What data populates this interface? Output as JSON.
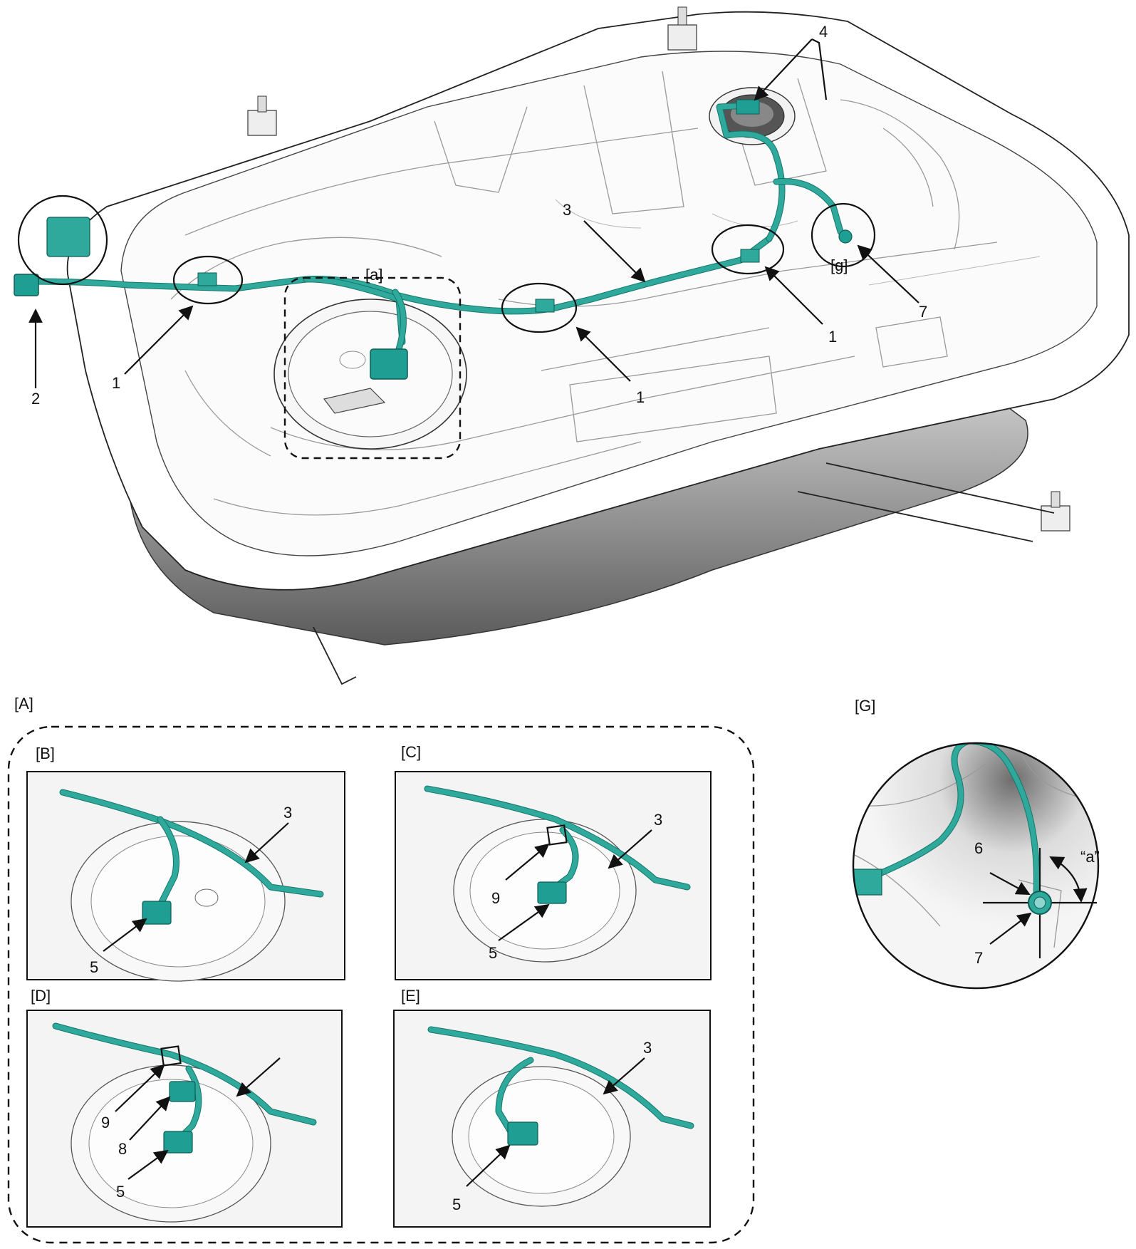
{
  "main_view": {
    "callouts": {
      "a": "[a]",
      "g": "[g]"
    },
    "numbers": {
      "n1_left": "1",
      "n1_mid": "1",
      "n1_right": "1",
      "n2": "2",
      "n3": "3",
      "n4": "4",
      "n7": "7"
    }
  },
  "detail_A": {
    "label": "[A]",
    "panel_B": {
      "label": "[B]",
      "n3": "3",
      "n5": "5"
    },
    "panel_C": {
      "label": "[C]",
      "n3": "3",
      "n5": "5",
      "n9": "9"
    },
    "panel_D": {
      "label": "[D]",
      "n5": "5",
      "n8": "8",
      "n9": "9"
    },
    "panel_E": {
      "label": "[E]",
      "n3": "3",
      "n5": "5"
    }
  },
  "detail_G": {
    "label": "[G]",
    "n6": "6",
    "n7": "7",
    "angle": "“a”"
  },
  "colors": {
    "hose": "#2fa99c",
    "hose_shadow": "#15776c",
    "connector": "#1f9e93",
    "line": "#111111"
  }
}
